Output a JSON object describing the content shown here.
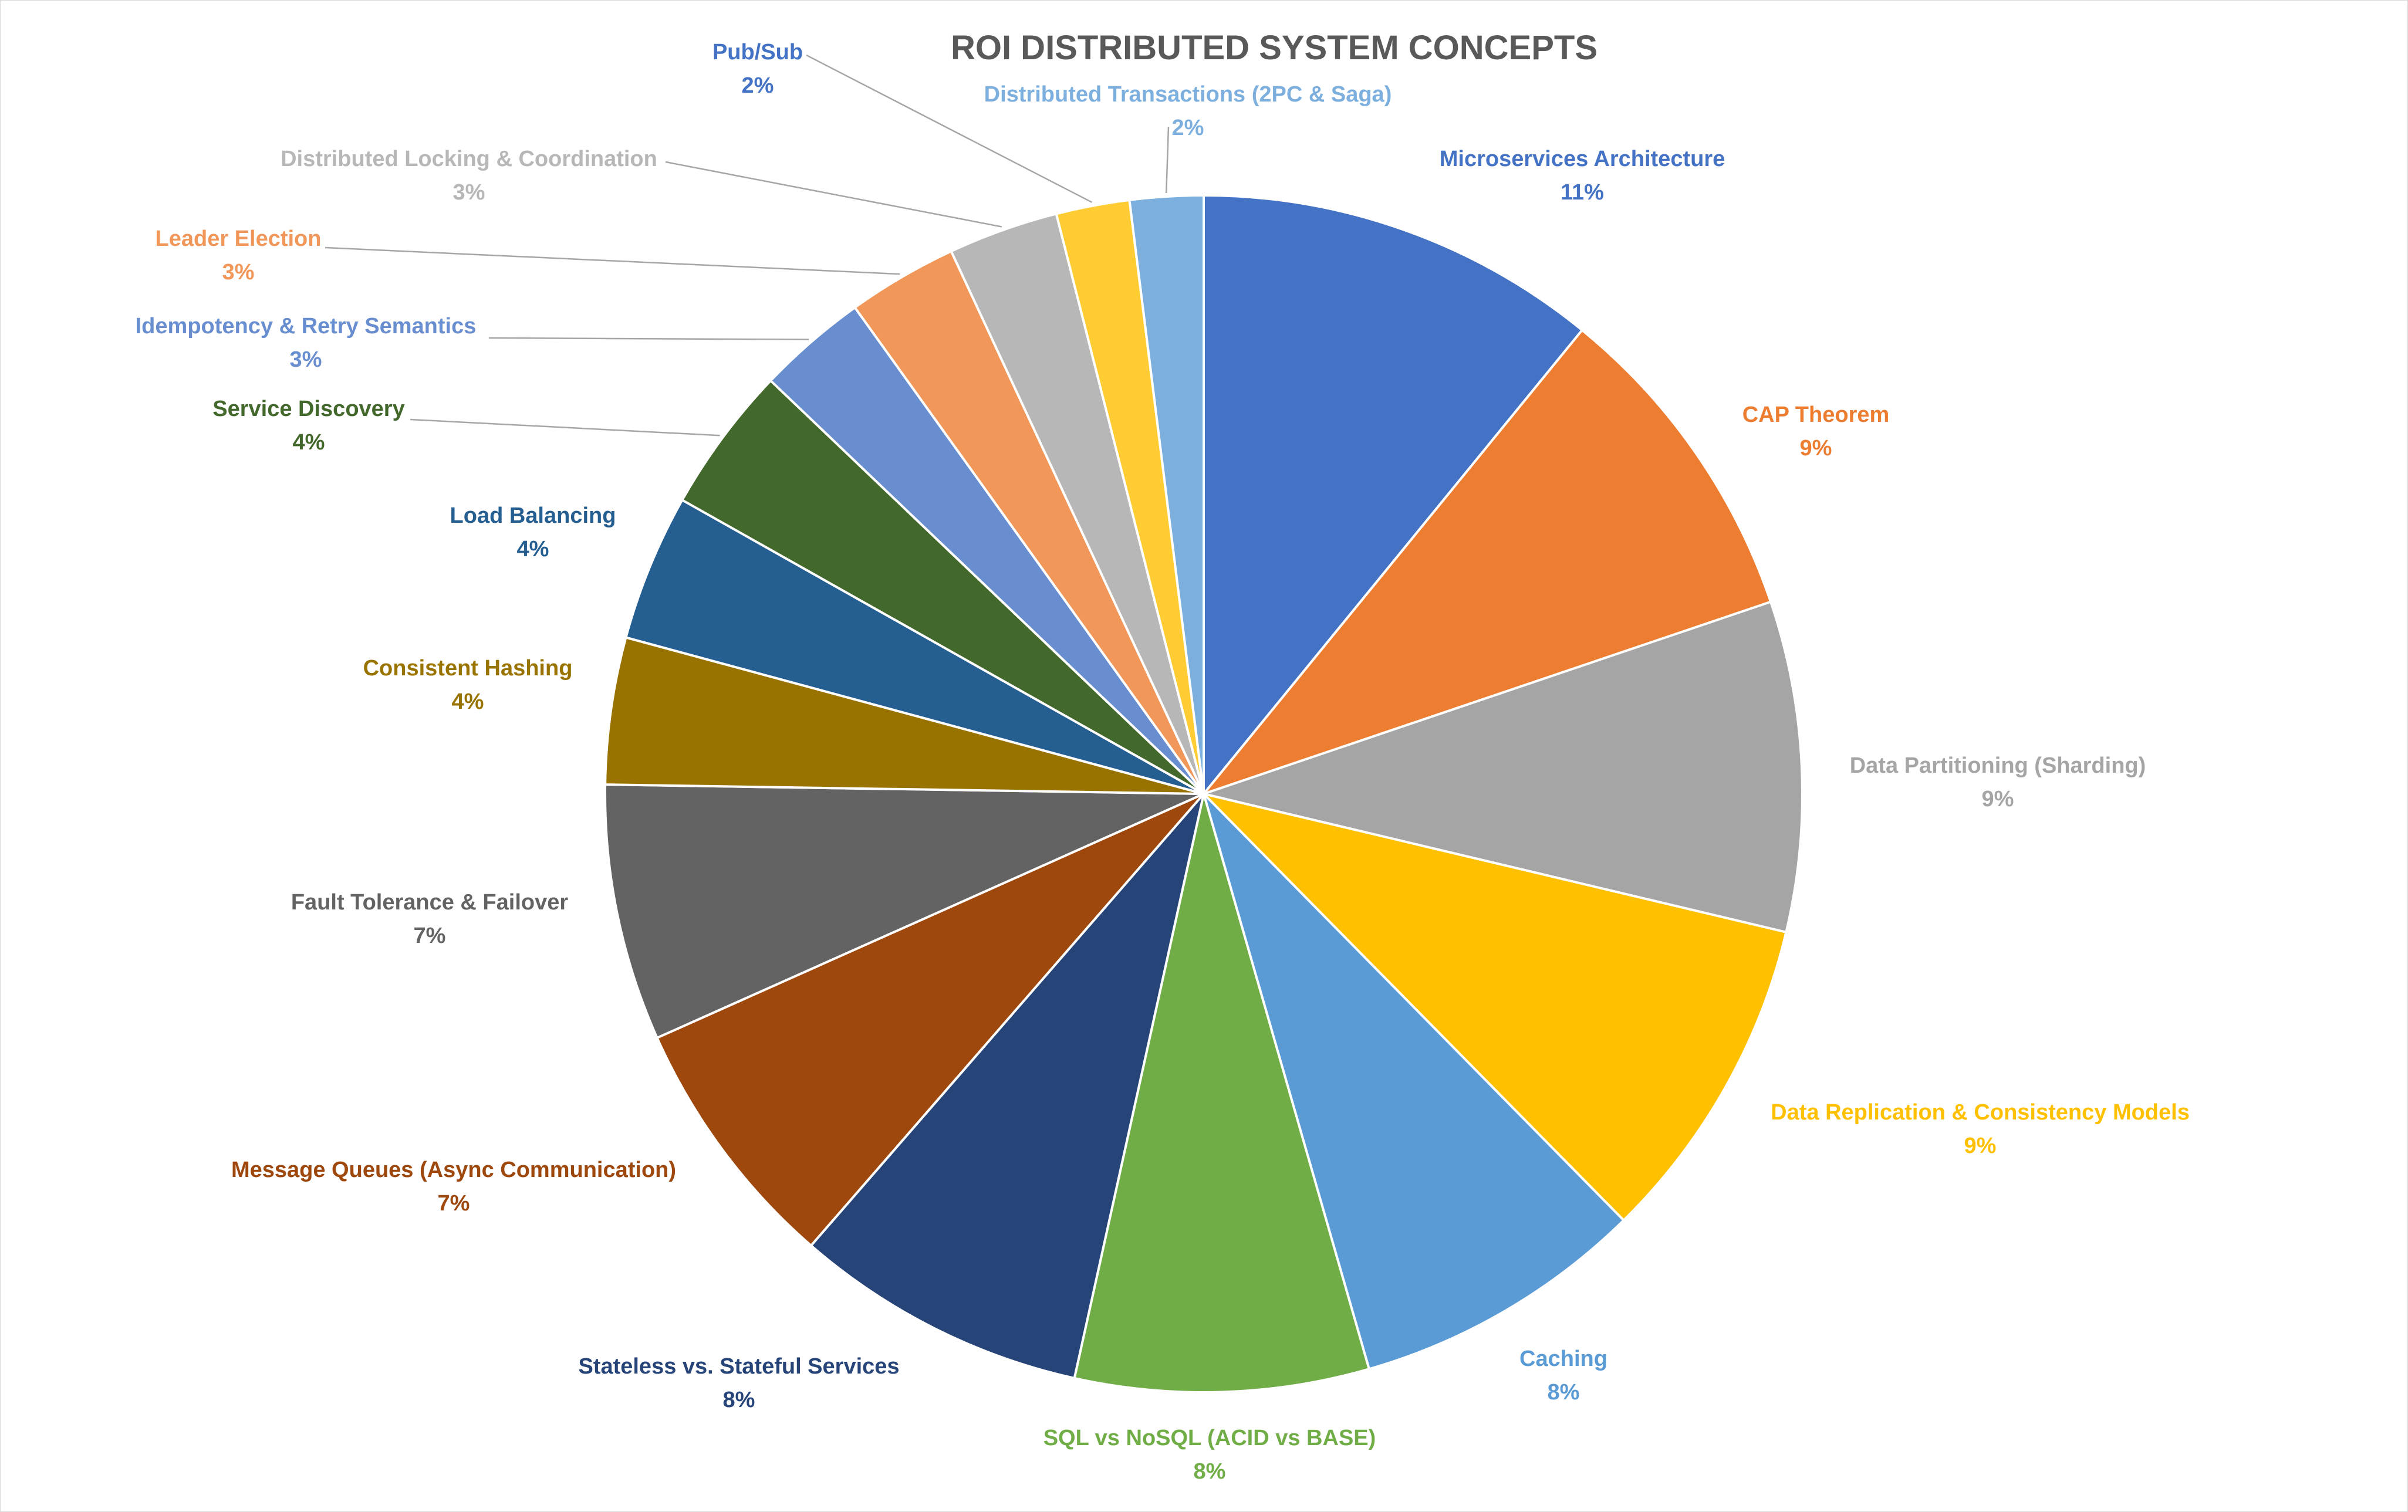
{
  "chart_data": {
    "type": "pie",
    "title": "ROI DISTRIBUTED SYSTEM CONCEPTS",
    "categories": [
      "Microservices Architecture",
      "CAP Theorem",
      "Data Partitioning (Sharding)",
      "Data Replication & Consistency Models",
      "Caching",
      "SQL vs NoSQL (ACID vs BASE)",
      "Stateless vs. Stateful Services",
      "Message Queues (Async Communication)",
      "Fault Tolerance & Failover",
      "Consistent Hashing",
      "Load Balancing",
      "Service Discovery",
      "Idempotency & Retry Semantics",
      "Leader Election",
      "Distributed Locking & Coordination",
      "Pub/Sub",
      "Distributed Transactions (2PC & Saga)"
    ],
    "values": [
      11,
      9,
      9,
      9,
      8,
      8,
      8,
      7,
      7,
      4,
      4,
      4,
      3,
      3,
      3,
      2,
      2
    ],
    "percent_labels": [
      "11%",
      "9%",
      "9%",
      "9%",
      "8%",
      "8%",
      "8%",
      "7%",
      "7%",
      "4%",
      "4%",
      "4%",
      "3%",
      "3%",
      "3%",
      "2%",
      "2%"
    ],
    "colors": [
      "#4472C4",
      "#ED7D31",
      "#A5A5A5",
      "#FFC000",
      "#5B9BD5",
      "#70AD47",
      "#264478",
      "#9E480E",
      "#636363",
      "#997300",
      "#255E91",
      "#43682B",
      "#698ED0",
      "#F1975A",
      "#B7B7B7",
      "#FFCD33",
      "#7CAFDD"
    ],
    "label_colors": [
      "#4472C4",
      "#ED7D31",
      "#A5A5A5",
      "#FFC000",
      "#5B9BD5",
      "#70AD47",
      "#264478",
      "#9E480E",
      "#636363",
      "#997300",
      "#255E91",
      "#43682B",
      "#698ED0",
      "#F1975A",
      "#B7B7B7",
      "#4472C4",
      "#7CAFDD"
    ],
    "legend": "none",
    "data_labels": "category name and percentage, outside end with leader lines"
  }
}
